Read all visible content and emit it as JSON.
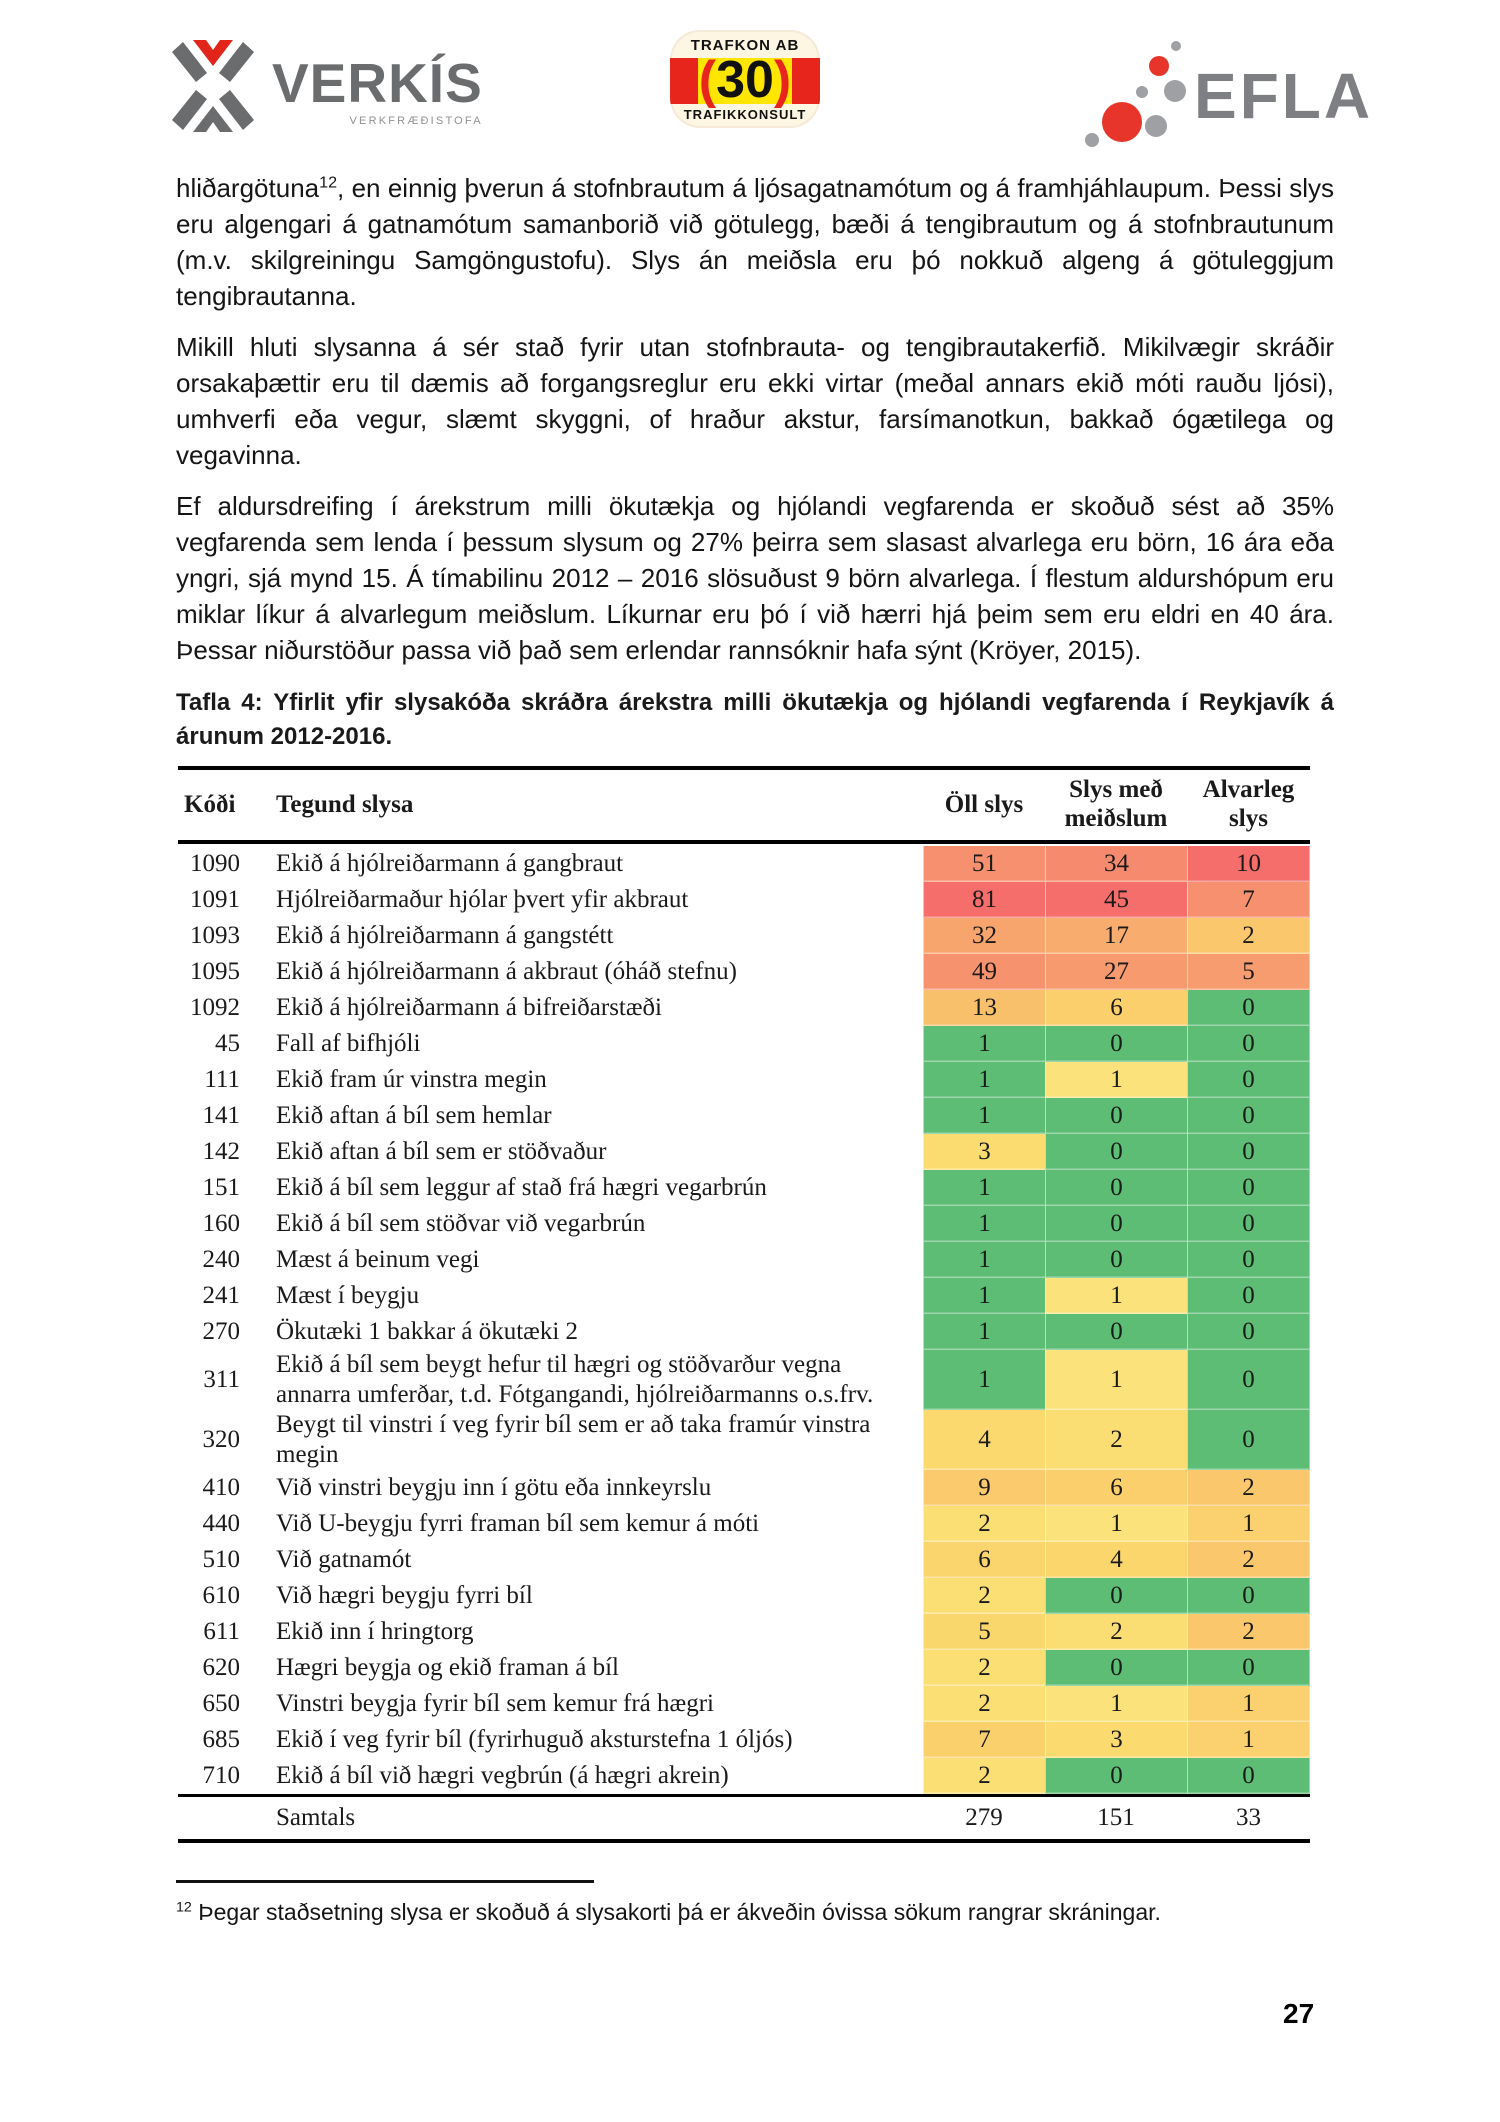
{
  "logos": {
    "verkis": {
      "name": "VERKÍS",
      "subtitle": "VERKFRÆÐISTOFA",
      "gray": "#6a6c6e",
      "red": "#e1251b"
    },
    "trafkon": {
      "top": "TRAFKON AB",
      "number": "30",
      "paren_open": "(",
      "paren_close": ")",
      "bottom": "TRAFIKKONSULT",
      "red": "#e8251d",
      "yellow": "#ffe600"
    },
    "efla": {
      "name": "EFLA",
      "gray": "#7d7f82",
      "red": "#e8352b",
      "dot_gray": "#9ea0a3"
    }
  },
  "paragraphs": {
    "p1": {
      "pre": "hliðargötuna",
      "sup": "12",
      "rest": ", en einnig þverun á stofnbrautum á ljósagatnamótum og á framhjáhlaupum. Þessi slys eru algengari á gatnamótum samanborið við götulegg, bæði á tengibrautum og á stofnbrautunum (m.v. skilgreiningu Samgöngustofu). Slys án meiðsla eru þó nokkuð algeng á götuleggjum tengibrautanna."
    },
    "p2": "Mikill hluti slysanna á sér stað fyrir utan stofnbrauta- og tengibrautakerfið. Mikilvægir skráðir orsakaþættir eru til dæmis að forgangsreglur eru ekki virtar (meðal annars ekið móti rauðu ljósi), umhverfi eða vegur, slæmt skyggni, of hraður akstur, farsímanotkun, bakkað ógætilega og vegavinna.",
    "p3": "Ef aldursdreifing í árekstrum milli ökutækja og hjólandi vegfarenda er skoðuð sést að 35% vegfarenda sem lenda í þessum slysum og 27% þeirra sem slasast alvarlega eru börn, 16 ára eða yngri, sjá mynd 15. Á tímabilinu 2012 – 2016 slösuðust 9 börn alvarlega. Í flestum aldurshópum eru miklar líkur á alvarlegum meiðslum. Líkurnar eru þó í við hærri hjá þeim sem eru eldri en 40 ára. Þessar niðurstöður passa við það sem erlendar rannsóknir hafa sýnt (Kröyer, 2015)."
  },
  "table": {
    "caption": "Tafla 4: Yfirlit yfir slysakóða skráðra árekstra milli ökutækja og hjólandi vegfarenda í Reykjavík á árunum 2012-2016.",
    "columns": [
      "Kóði",
      "Tegund slysa",
      "Öll slys",
      "Slys með meiðslum",
      "Alvarleg slys"
    ],
    "legend_colors": {
      "low": "#5dbd74",
      "mid": "#fbdf75",
      "high": "#f56e6b"
    },
    "rows": [
      {
        "code": "1090",
        "desc": "Ekið á hjólreiðarmann á gangbraut",
        "values": [
          51,
          34,
          10
        ],
        "colors": [
          "#f6906e",
          "#f68a6e",
          "#f56e6b"
        ]
      },
      {
        "code": "1091",
        "desc": "Hjólreiðarmaður hjólar þvert yfir akbraut",
        "values": [
          81,
          45,
          7
        ],
        "colors": [
          "#f56e6b",
          "#f56e6b",
          "#f6906e"
        ]
      },
      {
        "code": "1093",
        "desc": "Ekið á hjólreiðarmann á gangstétt",
        "values": [
          32,
          17,
          2
        ],
        "colors": [
          "#f8a56d",
          "#f8ac6d",
          "#fac76d"
        ]
      },
      {
        "code": "1095",
        "desc": "Ekið á hjólreiðarmann á akbraut (óháð stefnu)",
        "values": [
          49,
          27,
          5
        ],
        "colors": [
          "#f6926e",
          "#f79a6e",
          "#f79c6e"
        ]
      },
      {
        "code": "1092",
        "desc": "Ekið á hjólreiðarmann á bifreiðarstæði",
        "values": [
          13,
          6,
          0
        ],
        "colors": [
          "#f9c06c",
          "#facf6c",
          "#5dbd74"
        ]
      },
      {
        "code": "45",
        "desc": "Fall af bifhjóli",
        "values": [
          1,
          0,
          0
        ],
        "colors": [
          "#5dbd74",
          "#5dbd74",
          "#5dbd74"
        ]
      },
      {
        "code": "111",
        "desc": "Ekið fram úr vinstra megin",
        "values": [
          1,
          1,
          0
        ],
        "colors": [
          "#5dbd74",
          "#fce27a",
          "#5dbd74"
        ]
      },
      {
        "code": "141",
        "desc": "Ekið aftan á bíl sem hemlar",
        "values": [
          1,
          0,
          0
        ],
        "colors": [
          "#5dbd74",
          "#5dbd74",
          "#5dbd74"
        ]
      },
      {
        "code": "142",
        "desc": "Ekið aftan á bíl sem er stöðvaður",
        "values": [
          3,
          0,
          0
        ],
        "colors": [
          "#fbdc70",
          "#5dbd74",
          "#5dbd74"
        ]
      },
      {
        "code": "151",
        "desc": "Ekið á bíl sem leggur af stað frá hægri vegarbrún",
        "values": [
          1,
          0,
          0
        ],
        "colors": [
          "#5dbd74",
          "#5dbd74",
          "#5dbd74"
        ]
      },
      {
        "code": "160",
        "desc": "Ekið á bíl sem stöðvar við vegarbrún",
        "values": [
          1,
          0,
          0
        ],
        "colors": [
          "#5dbd74",
          "#5dbd74",
          "#5dbd74"
        ]
      },
      {
        "code": "240",
        "desc": "Mæst á beinum vegi",
        "values": [
          1,
          0,
          0
        ],
        "colors": [
          "#5dbd74",
          "#5dbd74",
          "#5dbd74"
        ]
      },
      {
        "code": "241",
        "desc": "Mæst í beygju",
        "values": [
          1,
          1,
          0
        ],
        "colors": [
          "#5dbd74",
          "#fce27a",
          "#5dbd74"
        ]
      },
      {
        "code": "270",
        "desc": "Ökutæki 1 bakkar á ökutæki 2",
        "values": [
          1,
          0,
          0
        ],
        "colors": [
          "#5dbd74",
          "#5dbd74",
          "#5dbd74"
        ]
      },
      {
        "code": "311",
        "desc": "Ekið á bíl sem beygt hefur til hægri og stöðvarður vegna annarra umferðar, t.d. Fótgangandi, hjólreiðarmanns o.s.frv.",
        "values": [
          1,
          1,
          0
        ],
        "colors": [
          "#5dbd74",
          "#fce27a",
          "#5dbd74"
        ]
      },
      {
        "code": "320",
        "desc": "Beygt til vinstri í veg fyrir bíl sem er að taka framúr vinstra megin",
        "values": [
          4,
          2,
          0
        ],
        "colors": [
          "#fbd96e",
          "#fbde73",
          "#5dbd74"
        ]
      },
      {
        "code": "410",
        "desc": "Við vinstri beygju inn í götu eða innkeyrslu",
        "values": [
          9,
          6,
          2
        ],
        "colors": [
          "#faca6c",
          "#facf6c",
          "#fac76d"
        ]
      },
      {
        "code": "440",
        "desc": "Við U-beygju fyrri framan bíl sem kemur á móti",
        "values": [
          2,
          1,
          1
        ],
        "colors": [
          "#fbdf75",
          "#fce27a",
          "#fad16e"
        ]
      },
      {
        "code": "510",
        "desc": "Við gatnamót",
        "values": [
          6,
          4,
          2
        ],
        "colors": [
          "#fad46d",
          "#fbd66d",
          "#fac76d"
        ]
      },
      {
        "code": "610",
        "desc": "Við hægri beygju fyrri bíl",
        "values": [
          2,
          0,
          0
        ],
        "colors": [
          "#fbdf75",
          "#5dbd74",
          "#5dbd74"
        ]
      },
      {
        "code": "611",
        "desc": "Ekið inn í hringtorg",
        "values": [
          5,
          2,
          2
        ],
        "colors": [
          "#fad76d",
          "#fbde73",
          "#fac76d"
        ]
      },
      {
        "code": "620",
        "desc": "Hægri beygja og ekið framan á bíl",
        "values": [
          2,
          0,
          0
        ],
        "colors": [
          "#fbdf75",
          "#5dbd74",
          "#5dbd74"
        ]
      },
      {
        "code": "650",
        "desc": "Vinstri beygja fyrir bíl sem kemur frá hægri",
        "values": [
          2,
          1,
          1
        ],
        "colors": [
          "#fbdf75",
          "#fce27a",
          "#fad16e"
        ]
      },
      {
        "code": "685",
        "desc": "Ekið í veg fyrir bíl (fyrirhuguð aksturstefna 1 óljós)",
        "values": [
          7,
          3,
          1
        ],
        "colors": [
          "#fad06c",
          "#fbda6f",
          "#fad16e"
        ]
      },
      {
        "code": "710",
        "desc": "Ekið á bíl við hægri vegbrún (á hægri akrein)",
        "values": [
          2,
          0,
          0
        ],
        "colors": [
          "#fbdf75",
          "#5dbd74",
          "#5dbd74"
        ]
      }
    ],
    "total": {
      "label": "Samtals",
      "all": "279",
      "injury": "151",
      "severe": "33"
    }
  },
  "footnote": {
    "sup": "12",
    "text": "Þegar staðsetning slysa er skoðuð á slysakorti þá er ákveðin óvissa sökum rangrar skráningar."
  },
  "page_number": "27"
}
